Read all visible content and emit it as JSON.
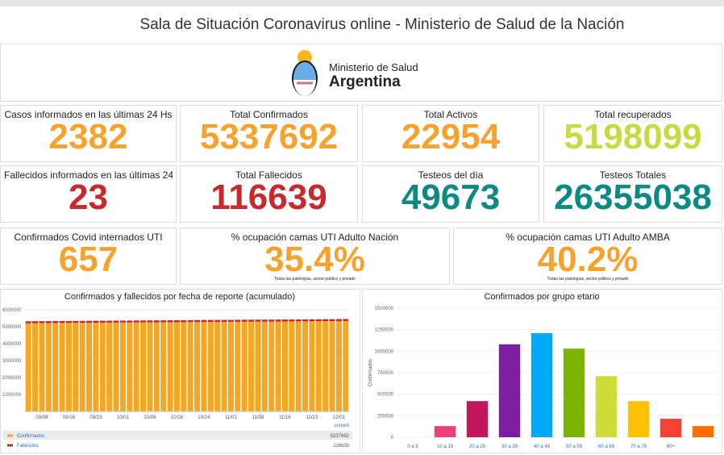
{
  "header": {
    "title": "Sala de Situación Coronavirus online - Ministerio de Salud de la Nación"
  },
  "logo": {
    "line1": "Ministerio de Salud",
    "line2": "Argentina"
  },
  "kpis": [
    {
      "label": "Casos informados en las últimas 24 Hs",
      "value": 2382,
      "color": "#f5a32e"
    },
    {
      "label": "Total Confirmados",
      "value": 5337692,
      "color": "#f5a32e"
    },
    {
      "label": "Total Activos",
      "value": 22954,
      "color": "#f5a32e"
    },
    {
      "label": "Total recuperados",
      "value": 5198099,
      "color": "#c9d943"
    },
    {
      "label": "Fallecidos informados en las últimas 24…",
      "value": 23,
      "color": "#c62a2f"
    },
    {
      "label": "Total Fallecidos",
      "value": 116639,
      "color": "#c62a2f"
    },
    {
      "label": "Testeos del día",
      "value": 49673,
      "color": "#0e8a84"
    },
    {
      "label": "Testeos Totales",
      "value": 26355038,
      "color": "#0e8a84"
    },
    {
      "label": "Confirmados Covid internados UTI",
      "value": 657,
      "color": "#f5a32e"
    },
    {
      "label": "% ocupación camas UTI Adulto Nación",
      "value": 35.4,
      "value_label": "35.4%",
      "color": "#f5a32e",
      "note": "Todas las patologías, sector público y privado"
    },
    {
      "label": "% ocupación camas UTI Adulto AMBA",
      "value": 40.2,
      "value_label": "40.2%",
      "color": "#f5a32e",
      "note": "Todas las patologías, sector público y privado"
    }
  ],
  "chart_data": [
    {
      "type": "stacked-bar",
      "title": "Confirmados y fallecidos por fecha de reporte (acumulado)",
      "categories": [
        null,
        null,
        "09/08",
        null,
        null,
        null,
        "09/16",
        null,
        null,
        null,
        "09/23",
        null,
        null,
        null,
        "10/01",
        null,
        null,
        null,
        "10/08",
        null,
        null,
        null,
        "10/16",
        null,
        null,
        null,
        "10/24",
        null,
        null,
        null,
        "11/01",
        null,
        null,
        null,
        "11/08",
        null,
        null,
        null,
        "11/16",
        null,
        null,
        null,
        "11/23",
        null,
        null,
        null,
        "12/01",
        null
      ],
      "series": [
        {
          "name": "Confirmados",
          "color": "#f5a623",
          "values": [
            5210000,
            5213000,
            5216000,
            5218000,
            5221000,
            5224000,
            5226000,
            5229000,
            5232000,
            5234000,
            5237000,
            5240000,
            5242000,
            5245000,
            5248000,
            5250000,
            5253000,
            5256000,
            5258000,
            5261000,
            5264000,
            5266000,
            5269000,
            5272000,
            5274000,
            5277000,
            5280000,
            5282000,
            5285000,
            5288000,
            5290000,
            5293000,
            5296000,
            5298000,
            5301000,
            5304000,
            5306000,
            5309000,
            5312000,
            5314000,
            5317000,
            5320000,
            5322000,
            5325000,
            5328000,
            5330000,
            5334000,
            5337692
          ]
        },
        {
          "name": "Fallecidos",
          "color": "#c62828",
          "values": [
            113600,
            113665,
            113730,
            113795,
            113860,
            113925,
            113990,
            114055,
            114120,
            114185,
            114250,
            114315,
            114380,
            114445,
            114510,
            114575,
            114640,
            114705,
            114770,
            114835,
            114900,
            114965,
            115030,
            115095,
            115160,
            115225,
            115290,
            115355,
            115420,
            115485,
            115550,
            115615,
            115680,
            115745,
            115810,
            115875,
            115940,
            116005,
            116070,
            116135,
            116200,
            116265,
            116330,
            116395,
            116460,
            116525,
            116590,
            116639
          ]
        }
      ],
      "legend_header": "current",
      "ylim": [
        0,
        6000000
      ],
      "yticks": [
        1000000,
        2000000,
        3000000,
        4000000,
        5000000,
        6000000
      ],
      "grid": true
    },
    {
      "type": "bar",
      "title": "Confirmados por grupo etario",
      "ylabel": "Confirmados",
      "categories": [
        "0 a 9",
        "10 a 19",
        "20 a 29",
        "30 a 39",
        "40 a 49",
        "50 a 59",
        "60 a 69",
        "70 a 79",
        "80+",
        null
      ],
      "values": [
        0,
        130000,
        420000,
        1080000,
        1210000,
        1030000,
        710000,
        420000,
        215000,
        130000
      ],
      "colors": [
        "#ec407a",
        "#ec407a",
        "#c2185b",
        "#7b1fa2",
        "#03a9f4",
        "#7cb305",
        "#cddc39",
        "#ffc107",
        "#f44336",
        "#ff6f00"
      ],
      "ylim": [
        0,
        1500000
      ],
      "yticks": [
        0,
        250000,
        500000,
        750000,
        1000000,
        1250000,
        1500000
      ],
      "grid": true
    }
  ]
}
